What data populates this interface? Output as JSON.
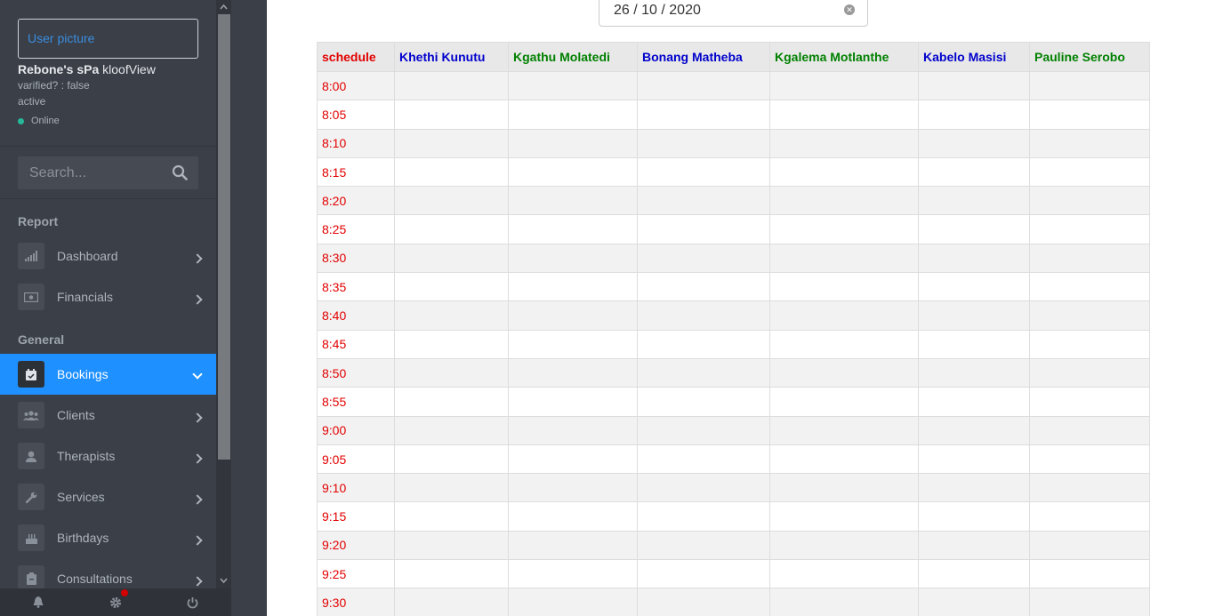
{
  "sidebar": {
    "user_picture": "User picture",
    "spa_name_bold": "Rebone's sPa",
    "spa_name_rest": " kloofView",
    "verified": "varified? : false",
    "status": "active",
    "online": "Online",
    "search_placeholder": "Search...",
    "sections": [
      {
        "title": "Report"
      },
      {
        "title": "General"
      }
    ],
    "items": [
      {
        "label": "Dashboard"
      },
      {
        "label": "Financials"
      },
      {
        "label": "Bookings"
      },
      {
        "label": "Clients"
      },
      {
        "label": "Therapists"
      },
      {
        "label": "Services"
      },
      {
        "label": "Birthdays"
      },
      {
        "label": "Consultations"
      }
    ]
  },
  "main": {
    "date_value": "26 / 10 / 2020",
    "table": {
      "headers": [
        {
          "label": "schedule",
          "color": "#e20000"
        },
        {
          "label": "Khethi Kunutu",
          "color": "#0000cc"
        },
        {
          "label": "Kgathu Molatedi",
          "color": "#008000"
        },
        {
          "label": "Bonang Matheba",
          "color": "#0000cc"
        },
        {
          "label": "Kgalema Motlanthe",
          "color": "#008000"
        },
        {
          "label": "Kabelo Masisi",
          "color": "#0000cc"
        },
        {
          "label": "Pauline Serobo",
          "color": "#008000"
        }
      ],
      "times": [
        "8:00",
        "8:05",
        "8:10",
        "8:15",
        "8:20",
        "8:25",
        "8:30",
        "8:35",
        "8:40",
        "8:45",
        "8:50",
        "8:55",
        "9:00",
        "9:05",
        "9:10",
        "9:15",
        "9:20",
        "9:25",
        "9:30"
      ]
    }
  },
  "colors": {
    "accent": "#1e90ff",
    "time_text": "#e20000",
    "online": "#26b99a"
  }
}
